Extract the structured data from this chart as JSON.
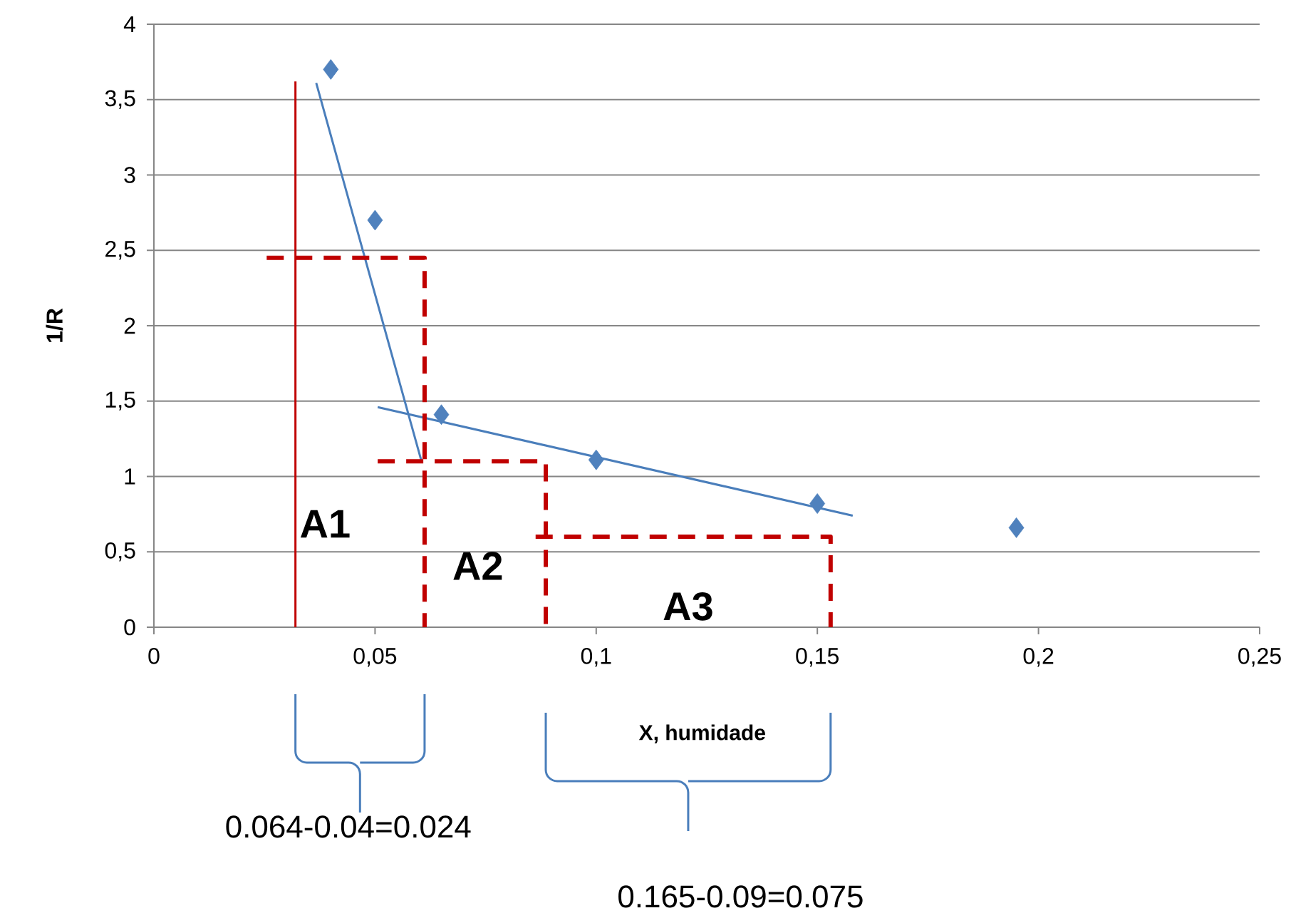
{
  "chart_data": {
    "type": "scatter",
    "xlabel": "X, humidade",
    "ylabel": "1/R",
    "xlim": [
      0,
      0.25
    ],
    "ylim": [
      0,
      4
    ],
    "xticks": [
      0,
      {
        "value": 0.05,
        "label": "0,05"
      },
      {
        "value": 0.1,
        "label": "0,1"
      },
      {
        "value": 0.15,
        "label": "0,15"
      },
      {
        "value": 0.2,
        "label": "0,2"
      },
      {
        "value": 0.25,
        "label": "0,25"
      }
    ],
    "yticks": [
      0,
      {
        "value": 0.5,
        "label": "0,5"
      },
      1,
      {
        "value": 1.5,
        "label": "1,5"
      },
      2,
      {
        "value": 2.5,
        "label": "2,5"
      },
      3,
      {
        "value": 3.5,
        "label": "3,5"
      },
      4
    ],
    "grid": "y",
    "series": [
      {
        "color": "#4f81bd",
        "marker": "diamond",
        "x": [
          0.04,
          0.05,
          0.065,
          0.1,
          0.15,
          0.195
        ],
        "values": [
          3.7,
          2.7,
          1.41,
          1.11,
          0.82,
          0.66
        ]
      },
      {
        "type": "line",
        "color": "#4a7ebb",
        "line_style": "solid",
        "x": [
          0.0367,
          0.0606
        ],
        "values": [
          3.61,
          1.09
        ]
      },
      {
        "type": "line",
        "color": "#4a7ebb",
        "line_style": "solid",
        "x": [
          0.0506,
          0.158
        ],
        "values": [
          1.46,
          0.74
        ]
      },
      {
        "type": "line",
        "color": "#c00000",
        "line_style": "solid",
        "x": [
          0.032,
          0.032
        ],
        "values": [
          0,
          3.62
        ]
      },
      {
        "type": "line",
        "color": "#c00000",
        "line_style": "dashed",
        "x": [
          0.0255,
          0.0612,
          0.0612
        ],
        "values": [
          2.45,
          2.45,
          0
        ]
      },
      {
        "type": "line",
        "color": "#c00000",
        "line_style": "dashed",
        "x": [
          0.0506,
          0.0886,
          0.0886
        ],
        "values": [
          1.1,
          1.1,
          0
        ]
      },
      {
        "type": "line",
        "color": "#c00000",
        "line_style": "dashed",
        "x": [
          0.0863,
          0.153,
          0.153
        ],
        "values": [
          0.6,
          0.6,
          0
        ]
      }
    ],
    "annotations": [
      "A1",
      "A2",
      "A3",
      "0.064-0.04=0.024",
      "0.165-0.09=0.075"
    ]
  }
}
